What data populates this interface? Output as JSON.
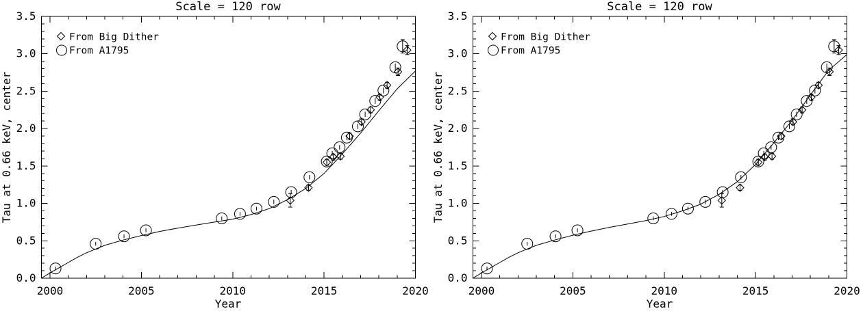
{
  "figure": {
    "background": "#ffffff",
    "ink": "#000000"
  },
  "chart_data": [
    {
      "type": "scatter",
      "title": "Scale = 120 row",
      "xlabel": "Year",
      "ylabel": "Tau at 0.66 keV, center",
      "xlim": [
        1999.53,
        2020
      ],
      "ylim": [
        0.0,
        3.5
      ],
      "grid": false,
      "legend_position": "top-left-inside",
      "x_major_ticks": [
        2000,
        2005,
        2010,
        2015,
        2020
      ],
      "x_tick_labels": [
        "2000",
        "2005",
        "2010",
        "2015",
        "2020"
      ],
      "x_minor_step": 1,
      "y_major_ticks": [
        0.0,
        0.5,
        1.0,
        1.5,
        2.0,
        2.5,
        3.0,
        3.5
      ],
      "y_tick_labels": [
        "0.0",
        "0.5",
        "1.0",
        "1.5",
        "2.0",
        "2.5",
        "3.0",
        "3.5"
      ],
      "y_minor_step": 0.1,
      "legend": [
        {
          "marker": "diamond",
          "label": "From Big Dither"
        },
        {
          "marker": "circle",
          "label": "From A1795"
        }
      ],
      "series": [
        {
          "name": "From Big Dither",
          "marker": "diamond",
          "points": [
            [
              2013.15,
              1.04,
              0.09
            ],
            [
              2014.15,
              1.21,
              0.035
            ],
            [
              2015.15,
              1.55,
              0.04
            ],
            [
              2015.5,
              1.62,
              0.04
            ],
            [
              2015.9,
              1.63,
              0.04
            ],
            [
              2016.4,
              1.9,
              0.04
            ],
            [
              2017.05,
              2.09,
              0.04
            ],
            [
              2017.55,
              2.25,
              0.04
            ],
            [
              2018.05,
              2.42,
              0.04
            ],
            [
              2018.45,
              2.58,
              0.04
            ],
            [
              2019.05,
              2.76,
              0.05
            ],
            [
              2019.55,
              3.05,
              0.06
            ]
          ]
        },
        {
          "name": "From A1795",
          "marker": "circle",
          "points": [
            [
              2000.3,
              0.13,
              0.025
            ],
            [
              2002.5,
              0.46,
              0.025
            ],
            [
              2004.05,
              0.56,
              0.025
            ],
            [
              2005.25,
              0.64,
              0.025
            ],
            [
              2009.4,
              0.8,
              0.025
            ],
            [
              2010.4,
              0.86,
              0.025
            ],
            [
              2011.3,
              0.93,
              0.025
            ],
            [
              2012.25,
              1.02,
              0.03
            ],
            [
              2013.2,
              1.15,
              0.03
            ],
            [
              2014.2,
              1.35,
              0.03
            ],
            [
              2015.15,
              1.56,
              0.03
            ],
            [
              2015.45,
              1.67,
              0.03
            ],
            [
              2015.85,
              1.75,
              0.03
            ],
            [
              2016.25,
              1.88,
              0.035
            ],
            [
              2016.85,
              2.03,
              0.035
            ],
            [
              2017.25,
              2.19,
              0.035
            ],
            [
              2017.8,
              2.37,
              0.04
            ],
            [
              2018.25,
              2.51,
              0.04
            ],
            [
              2018.9,
              2.82,
              0.05
            ],
            [
              2019.3,
              3.1,
              0.09
            ]
          ]
        }
      ],
      "model_curve": [
        [
          1999.53,
          0.0
        ],
        [
          2000,
          0.07
        ],
        [
          2000.5,
          0.14
        ],
        [
          2001,
          0.21
        ],
        [
          2001.5,
          0.28
        ],
        [
          2002,
          0.34
        ],
        [
          2002.5,
          0.39
        ],
        [
          2003,
          0.44
        ],
        [
          2004,
          0.51
        ],
        [
          2005,
          0.57
        ],
        [
          2006,
          0.625
        ],
        [
          2007,
          0.67
        ],
        [
          2008,
          0.71
        ],
        [
          2009,
          0.75
        ],
        [
          2010,
          0.79
        ],
        [
          2011,
          0.85
        ],
        [
          2012,
          0.93
        ],
        [
          2013,
          1.05
        ],
        [
          2014,
          1.2
        ],
        [
          2015,
          1.4
        ],
        [
          2016,
          1.66
        ],
        [
          2017,
          1.94
        ],
        [
          2018,
          2.24
        ],
        [
          2019,
          2.53
        ],
        [
          2020,
          2.77
        ]
      ]
    },
    {
      "type": "scatter",
      "title": "Scale = 120 row",
      "xlabel": "Year",
      "ylabel": "Tau at 0.66 keV, center",
      "xlim": [
        1999.53,
        2020
      ],
      "ylim": [
        0.0,
        3.5
      ],
      "grid": false,
      "legend_position": "top-left-inside",
      "x_major_ticks": [
        2000,
        2005,
        2010,
        2015,
        2020
      ],
      "x_tick_labels": [
        "2000",
        "2005",
        "2010",
        "2015",
        "2020"
      ],
      "x_minor_step": 1,
      "y_major_ticks": [
        0.0,
        0.5,
        1.0,
        1.5,
        2.0,
        2.5,
        3.0,
        3.5
      ],
      "y_tick_labels": [
        "0.0",
        "0.5",
        "1.0",
        "1.5",
        "2.0",
        "2.5",
        "3.0",
        "3.5"
      ],
      "y_minor_step": 0.1,
      "legend": [
        {
          "marker": "diamond",
          "label": "From Big Dither"
        },
        {
          "marker": "circle",
          "label": "From A1795"
        }
      ],
      "series": [
        {
          "name": "From Big Dither",
          "marker": "diamond",
          "points": [
            [
              2013.15,
              1.04,
              0.09
            ],
            [
              2014.15,
              1.21,
              0.035
            ],
            [
              2015.15,
              1.55,
              0.04
            ],
            [
              2015.5,
              1.62,
              0.04
            ],
            [
              2015.9,
              1.63,
              0.04
            ],
            [
              2016.4,
              1.9,
              0.04
            ],
            [
              2017.05,
              2.09,
              0.04
            ],
            [
              2017.55,
              2.25,
              0.04
            ],
            [
              2018.05,
              2.42,
              0.04
            ],
            [
              2018.45,
              2.58,
              0.04
            ],
            [
              2019.05,
              2.76,
              0.05
            ],
            [
              2019.55,
              3.05,
              0.06
            ]
          ]
        },
        {
          "name": "From A1795",
          "marker": "circle",
          "points": [
            [
              2000.3,
              0.13,
              0.025
            ],
            [
              2002.5,
              0.46,
              0.025
            ],
            [
              2004.05,
              0.56,
              0.025
            ],
            [
              2005.25,
              0.64,
              0.025
            ],
            [
              2009.4,
              0.8,
              0.025
            ],
            [
              2010.4,
              0.86,
              0.025
            ],
            [
              2011.3,
              0.93,
              0.025
            ],
            [
              2012.25,
              1.02,
              0.03
            ],
            [
              2013.2,
              1.15,
              0.03
            ],
            [
              2014.2,
              1.35,
              0.03
            ],
            [
              2015.15,
              1.56,
              0.03
            ],
            [
              2015.45,
              1.67,
              0.03
            ],
            [
              2015.85,
              1.75,
              0.03
            ],
            [
              2016.25,
              1.88,
              0.035
            ],
            [
              2016.85,
              2.03,
              0.035
            ],
            [
              2017.25,
              2.19,
              0.035
            ],
            [
              2017.8,
              2.37,
              0.04
            ],
            [
              2018.25,
              2.51,
              0.04
            ],
            [
              2018.9,
              2.82,
              0.05
            ],
            [
              2019.3,
              3.1,
              0.09
            ]
          ]
        }
      ],
      "model_curve": [
        [
          1999.53,
          0.0
        ],
        [
          2000,
          0.07
        ],
        [
          2000.5,
          0.14
        ],
        [
          2001,
          0.21
        ],
        [
          2001.5,
          0.28
        ],
        [
          2002,
          0.34
        ],
        [
          2002.5,
          0.39
        ],
        [
          2003,
          0.44
        ],
        [
          2004,
          0.51
        ],
        [
          2005,
          0.575
        ],
        [
          2006,
          0.63
        ],
        [
          2007,
          0.68
        ],
        [
          2008,
          0.725
        ],
        [
          2009,
          0.77
        ],
        [
          2010,
          0.825
        ],
        [
          2011,
          0.9
        ],
        [
          2012,
          0.99
        ],
        [
          2013,
          1.12
        ],
        [
          2014,
          1.29
        ],
        [
          2015,
          1.52
        ],
        [
          2016,
          1.81
        ],
        [
          2017,
          2.11
        ],
        [
          2018,
          2.45
        ],
        [
          2019,
          2.78
        ],
        [
          2020,
          2.99
        ]
      ]
    }
  ]
}
